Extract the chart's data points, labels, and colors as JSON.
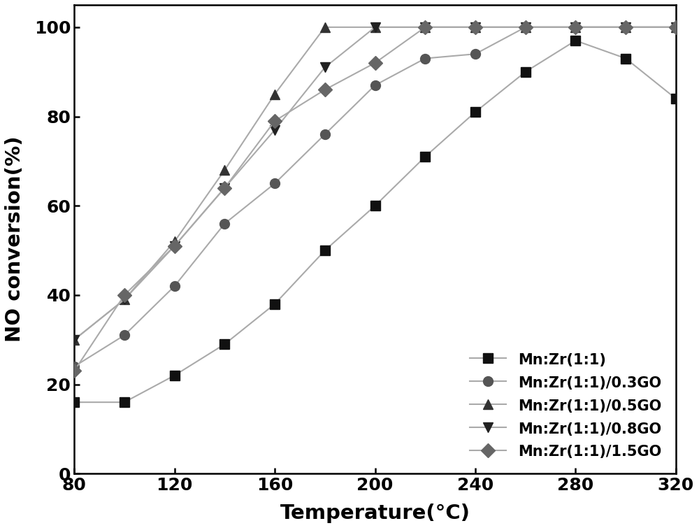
{
  "series": [
    {
      "label": "Mn:Zr(1:1)",
      "marker_color": "#111111",
      "marker": "s",
      "line_color": "#aaaaaa",
      "x": [
        80,
        100,
        120,
        140,
        160,
        180,
        200,
        220,
        240,
        260,
        280,
        300,
        320
      ],
      "y": [
        16,
        16,
        22,
        29,
        38,
        50,
        60,
        71,
        81,
        90,
        97,
        93,
        84
      ]
    },
    {
      "label": "Mn:Zr(1:1)/0.3GO",
      "marker_color": "#555555",
      "marker": "o",
      "line_color": "#aaaaaa",
      "x": [
        80,
        100,
        120,
        140,
        160,
        180,
        200,
        220,
        240,
        260,
        280,
        300,
        320
      ],
      "y": [
        24,
        31,
        42,
        56,
        65,
        76,
        87,
        93,
        94,
        100,
        100,
        100,
        100
      ]
    },
    {
      "label": "Mn:Zr(1:1)/0.5GO",
      "marker_color": "#333333",
      "marker": "^",
      "line_color": "#aaaaaa",
      "x": [
        80,
        100,
        120,
        140,
        160,
        180,
        200,
        220,
        240,
        260,
        280,
        300,
        320
      ],
      "y": [
        30,
        39,
        52,
        68,
        85,
        100,
        100,
        100,
        100,
        100,
        100,
        100,
        100
      ]
    },
    {
      "label": "Mn:Zr(1:1)/0.8GO",
      "marker_color": "#222222",
      "marker": "v",
      "line_color": "#aaaaaa",
      "x": [
        80,
        100,
        120,
        140,
        160,
        180,
        200,
        220,
        240,
        260,
        280,
        300,
        320
      ],
      "y": [
        30,
        39,
        51,
        64,
        77,
        91,
        100,
        100,
        100,
        100,
        100,
        100,
        100
      ]
    },
    {
      "label": "Mn:Zr(1:1)/1.5GO",
      "marker_color": "#666666",
      "marker": "D",
      "line_color": "#aaaaaa",
      "x": [
        80,
        100,
        120,
        140,
        160,
        180,
        200,
        220,
        240,
        260,
        280,
        300,
        320
      ],
      "y": [
        23,
        40,
        51,
        64,
        79,
        86,
        92,
        100,
        100,
        100,
        100,
        100,
        100
      ]
    }
  ],
  "xlabel": "Temperature(°C)",
  "ylabel": "NO conversion(%)",
  "xlim": [
    80,
    320
  ],
  "ylim": [
    0,
    105
  ],
  "xticks": [
    80,
    120,
    160,
    200,
    240,
    280,
    320
  ],
  "yticks": [
    0,
    20,
    40,
    60,
    80,
    100
  ],
  "linewidth": 1.5,
  "markersize": 10,
  "label_fontsize": 21,
  "tick_fontsize": 18,
  "legend_fontsize": 15
}
